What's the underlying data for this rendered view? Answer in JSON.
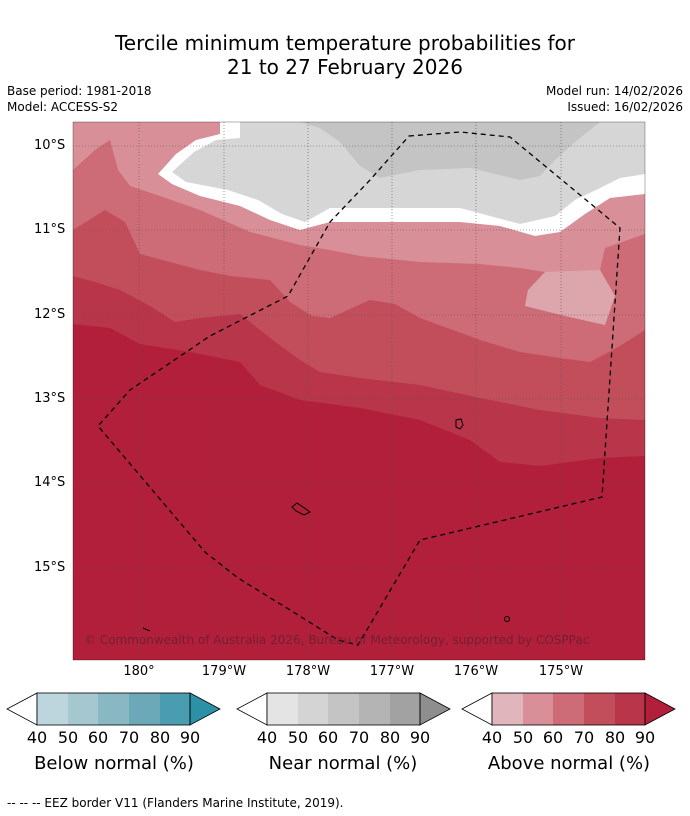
{
  "title": {
    "line1": "Tercile minimum temperature probabilities for",
    "line2": "21 to 27 February 2026"
  },
  "meta": {
    "base_period": "Base period: 1981-2018",
    "model": "Model: ACCESS-S2",
    "model_run": "Model run: 14/02/2026",
    "issued": "Issued: 16/02/2026"
  },
  "map": {
    "lat_labels": [
      "10°S",
      "11°S",
      "12°S",
      "13°S",
      "14°S",
      "15°S"
    ],
    "lon_labels": [
      "180°",
      "179°W",
      "178°W",
      "177°W",
      "176°W",
      "175°W"
    ],
    "copyright": "© Commonwealth of Australia 2026, Bureau of Meteorology, supported by COSPPac",
    "colors": {
      "above_40": "#e0b5bb",
      "above_50": "#d88f97",
      "above_60": "#cd6b76",
      "above_70": "#c24e5b",
      "above_80": "#b8354a",
      "above_90": "#b11f3b",
      "near_50": "#d6d6d6",
      "near_60": "#c4c4c4",
      "gap": "#ffffff"
    }
  },
  "legend": {
    "ticks": [
      "40",
      "50",
      "60",
      "70",
      "80",
      "90"
    ],
    "below": {
      "title": "Below normal (%)",
      "colors": [
        "#bdd6de",
        "#a5c7d0",
        "#89b7c4",
        "#6ba9b9",
        "#4a9db0",
        "#2c90a6"
      ]
    },
    "near": {
      "title": "Near normal (%)",
      "colors": [
        "#e4e4e4",
        "#d4d4d4",
        "#c4c4c4",
        "#b4b4b4",
        "#a2a2a2",
        "#8e8e8e"
      ]
    },
    "above": {
      "title": "Above normal (%)",
      "colors": [
        "#e0b5bb",
        "#d88f97",
        "#cd6b76",
        "#c24e5b",
        "#b8354a",
        "#b11f3b"
      ]
    }
  },
  "footnote": "--  --  -- EEZ border V11 (Flanders Marine Institute, 2019)."
}
